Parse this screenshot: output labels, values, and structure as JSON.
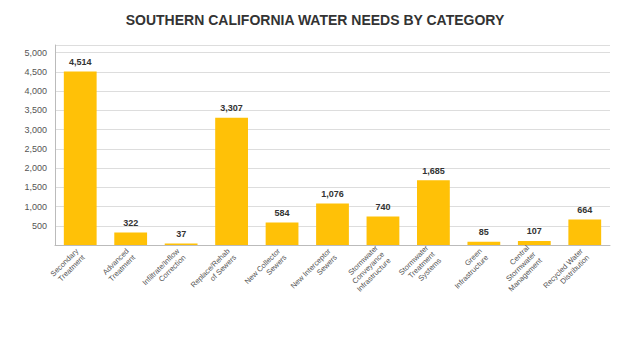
{
  "chart_data": {
    "type": "bar",
    "title": "SOUTHERN CALIFORNIA WATER NEEDS BY CATEGORY",
    "categories": [
      "Secondary\nTreatment",
      "Advanced\nTreatment",
      "Infiltrate/Inflow\nCorrection",
      "Replace/Rehab\nof Sewers",
      "New Collector\nSewers",
      "New Interceptor\nSewers",
      "Stormwater\nConveyance\nInfrastructure",
      "Stormwater\nTreatment\nSystems",
      "Green\nInfrastructure",
      "Central\nStormwater\nManagement",
      "Recycled Water\nDistribution"
    ],
    "values": [
      4514,
      322,
      37,
      3307,
      584,
      1076,
      740,
      1685,
      85,
      107,
      664
    ],
    "value_labels": [
      "4,514",
      "322",
      "37",
      "3,307",
      "584",
      "1,076",
      "740",
      "1,685",
      "85",
      "107",
      "664"
    ],
    "data_labels": true,
    "color": "#FFC107",
    "ylim": [
      0,
      5200
    ],
    "yticks": [
      500,
      {
        "value": 1000,
        "label": "1,000"
      },
      {
        "value": 1500,
        "label": "1,500"
      },
      {
        "value": 2000,
        "label": "2,000"
      },
      {
        "value": 2500,
        "label": "2,500"
      },
      {
        "value": 3000,
        "label": "3,000"
      },
      {
        "value": 3500,
        "label": "3,500"
      },
      {
        "value": 4000,
        "label": "4,000"
      },
      {
        "value": 4500,
        "label": "4,500"
      },
      {
        "value": 5000,
        "label": "5,000"
      }
    ],
    "grid": true
  }
}
